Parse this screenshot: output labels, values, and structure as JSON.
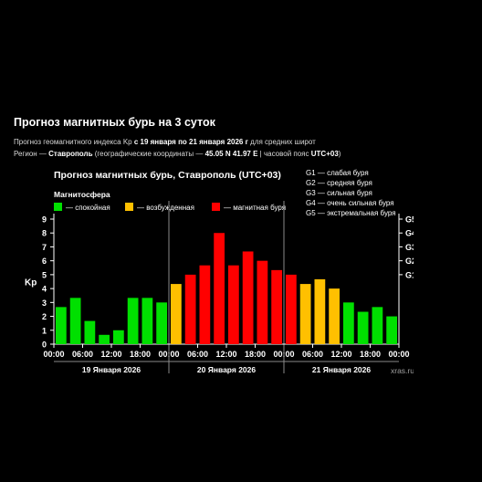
{
  "header": {
    "title": "Прогноз магнитных бурь на 3 суток",
    "line1_prefix": "Прогноз геомагнитного индекса Kp",
    "line1_bold": " с 19 января по 21 января 2026 г",
    "line1_suffix": " для средних широт",
    "line2_prefix": "Регион — ",
    "line2_region": "Ставрополь",
    "line2_mid": " (географические координаты — ",
    "line2_coords": "45.05 N 41.97 E",
    "line2_mid2": " | часовой пояс ",
    "line2_tz": "UTC+03",
    "line2_suffix": ")"
  },
  "chart_data": {
    "type": "bar",
    "title": "Прогноз магнитных бурь, Ставрополь (UTC+03)",
    "legend_title": "Магнитосфера",
    "legend": [
      {
        "label": "— спокойная",
        "color": "#00e000"
      },
      {
        "label": "— возбужденная",
        "color": "#ffc000"
      },
      {
        "label": "— магнитная буря",
        "color": "#ff0000"
      }
    ],
    "storm_levels": [
      "G1 — слабая буря",
      "G2 — средняя буря",
      "G3 — сильная буря",
      "G4 — очень сильная буря",
      "G5 — экстремальная буря"
    ],
    "ylabel": "Kp",
    "ylim": [
      0,
      9
    ],
    "yticks": [
      "0",
      "1",
      "2",
      "3",
      "4",
      "5",
      "6",
      "7",
      "8",
      "9"
    ],
    "right_ticks": [
      {
        "label": "G1",
        "value": 5
      },
      {
        "label": "G2",
        "value": 6
      },
      {
        "label": "G3",
        "value": 7
      },
      {
        "label": "G4",
        "value": 8
      },
      {
        "label": "G5",
        "value": 9
      }
    ],
    "xtick_labels": [
      "00:00",
      "06:00",
      "12:00",
      "18:00",
      "00:00",
      "06:00",
      "12:00",
      "18:00",
      "00:00",
      "06:00",
      "12:00",
      "18:00",
      "00:00"
    ],
    "days": [
      "19 Января 2026",
      "20 Января 2026",
      "21 Января 2026"
    ],
    "values": [
      2.67,
      3.33,
      1.67,
      0.67,
      1.0,
      3.33,
      3.33,
      3.0,
      4.33,
      5.0,
      5.67,
      8.0,
      5.67,
      6.67,
      6.0,
      5.33,
      5.0,
      4.33,
      4.67,
      4.0,
      3.0,
      2.33,
      2.67,
      2.0
    ],
    "colors": [
      "#00e000",
      "#00e000",
      "#00e000",
      "#00e000",
      "#00e000",
      "#00e000",
      "#00e000",
      "#00e000",
      "#ffc000",
      "#ff0000",
      "#ff0000",
      "#ff0000",
      "#ff0000",
      "#ff0000",
      "#ff0000",
      "#ff0000",
      "#ff0000",
      "#ffc000",
      "#ffc000",
      "#ffc000",
      "#00e000",
      "#00e000",
      "#00e000",
      "#00e000"
    ],
    "watermark": "xras.ru"
  }
}
